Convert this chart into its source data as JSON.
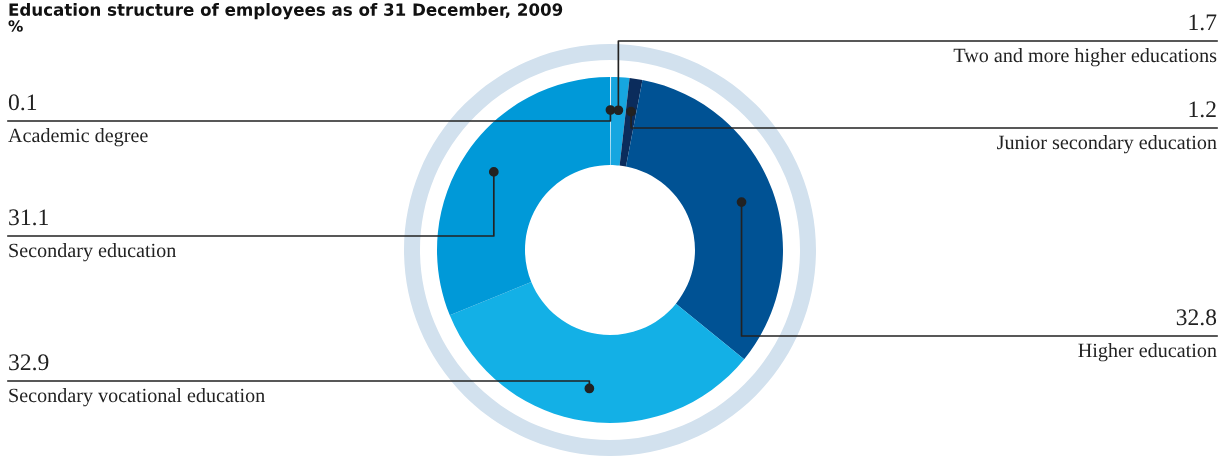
{
  "chart_data": {
    "type": "donut",
    "title": "Education structure of employees as of 31 December, 2009",
    "subtitle": "%",
    "categories": [
      "Academic degree",
      "Two and more higher educations",
      "Junior secondary education",
      "Higher education",
      "Secondary vocational education",
      "Secondary education"
    ],
    "values": [
      0.1,
      1.7,
      1.2,
      32.8,
      32.9,
      31.1
    ],
    "colors": [
      "#e6f2fa",
      "#16a6e0",
      "#0b2c5c",
      "#005294",
      "#13b0e6",
      "#0099d8"
    ],
    "data_labels": true
  }
}
